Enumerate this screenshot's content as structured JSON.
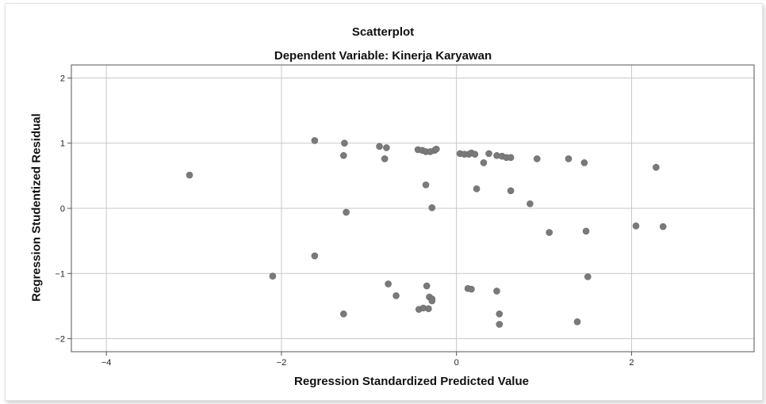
{
  "chart_data": {
    "type": "scatter",
    "title": "Scatterplot",
    "subtitle": "Dependent Variable: Kinerja Karyawan",
    "xlabel": "Regression Standardized Predicted Value",
    "ylabel": "Regression Studentized Residual",
    "xlim": [
      -4.4,
      3.4
    ],
    "ylim": [
      -2.2,
      2.2
    ],
    "xticks": [
      -4,
      -2,
      0,
      2
    ],
    "yticks": [
      2,
      1,
      0,
      -1,
      -2
    ],
    "grid": true,
    "marker_color": "#7a7a7a",
    "points": [
      {
        "x": -3.05,
        "y": 0.51
      },
      {
        "x": -2.1,
        "y": -1.04
      },
      {
        "x": -1.62,
        "y": 1.04
      },
      {
        "x": -1.62,
        "y": -0.73
      },
      {
        "x": -1.28,
        "y": 1.0
      },
      {
        "x": -1.29,
        "y": 0.81
      },
      {
        "x": -1.26,
        "y": -0.06
      },
      {
        "x": -1.29,
        "y": -1.62
      },
      {
        "x": -0.88,
        "y": 0.95
      },
      {
        "x": -0.8,
        "y": 0.93
      },
      {
        "x": -0.82,
        "y": 0.76
      },
      {
        "x": -0.78,
        "y": -1.16
      },
      {
        "x": -0.69,
        "y": -1.34
      },
      {
        "x": -0.44,
        "y": 0.9
      },
      {
        "x": -0.39,
        "y": 0.89
      },
      {
        "x": -0.35,
        "y": 0.87
      },
      {
        "x": -0.3,
        "y": 0.87
      },
      {
        "x": -0.25,
        "y": 0.89
      },
      {
        "x": -0.23,
        "y": 0.91
      },
      {
        "x": -0.35,
        "y": 0.36
      },
      {
        "x": -0.28,
        "y": 0.01
      },
      {
        "x": -0.34,
        "y": -1.19
      },
      {
        "x": -0.31,
        "y": -1.36
      },
      {
        "x": -0.28,
        "y": -1.39
      },
      {
        "x": -0.28,
        "y": -1.42
      },
      {
        "x": -0.43,
        "y": -1.55
      },
      {
        "x": -0.38,
        "y": -1.53
      },
      {
        "x": -0.32,
        "y": -1.54
      },
      {
        "x": 0.04,
        "y": 0.84
      },
      {
        "x": 0.09,
        "y": 0.83
      },
      {
        "x": 0.14,
        "y": 0.83
      },
      {
        "x": 0.17,
        "y": 0.85
      },
      {
        "x": 0.21,
        "y": 0.83
      },
      {
        "x": 0.31,
        "y": 0.7
      },
      {
        "x": 0.37,
        "y": 0.84
      },
      {
        "x": 0.46,
        "y": 0.81
      },
      {
        "x": 0.52,
        "y": 0.8
      },
      {
        "x": 0.57,
        "y": 0.78
      },
      {
        "x": 0.62,
        "y": 0.78
      },
      {
        "x": 0.23,
        "y": 0.3
      },
      {
        "x": 0.62,
        "y": 0.27
      },
      {
        "x": 0.84,
        "y": 0.07
      },
      {
        "x": 0.13,
        "y": -1.23
      },
      {
        "x": 0.17,
        "y": -1.24
      },
      {
        "x": 0.46,
        "y": -1.27
      },
      {
        "x": 0.49,
        "y": -1.62
      },
      {
        "x": 0.49,
        "y": -1.78
      },
      {
        "x": 0.92,
        "y": 0.76
      },
      {
        "x": 1.28,
        "y": 0.76
      },
      {
        "x": 1.46,
        "y": 0.7
      },
      {
        "x": 1.06,
        "y": -0.37
      },
      {
        "x": 1.48,
        "y": -0.35
      },
      {
        "x": 1.5,
        "y": -1.05
      },
      {
        "x": 1.38,
        "y": -1.74
      },
      {
        "x": 2.28,
        "y": 0.63
      },
      {
        "x": 2.05,
        "y": -0.27
      },
      {
        "x": 2.36,
        "y": -0.28
      }
    ]
  }
}
